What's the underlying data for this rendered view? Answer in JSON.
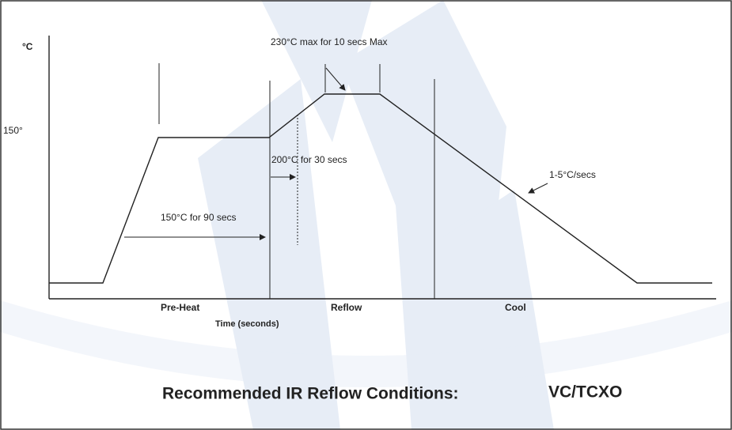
{
  "axis": {
    "y_unit": "°C",
    "y_mark": "150°",
    "x_label": "Time (seconds)"
  },
  "annotations": {
    "peak": "230°C max for 10 secs Max",
    "reflow_hold": "200°C for 30 secs",
    "preheat_hold": "150°C for 90 secs",
    "cool_rate": "1-5°C/secs"
  },
  "phases": [
    "Pre-Heat",
    "Reflow",
    "Cool"
  ],
  "title": "Recommended IR Reflow Conditions:",
  "product": "VC/TCXO"
}
